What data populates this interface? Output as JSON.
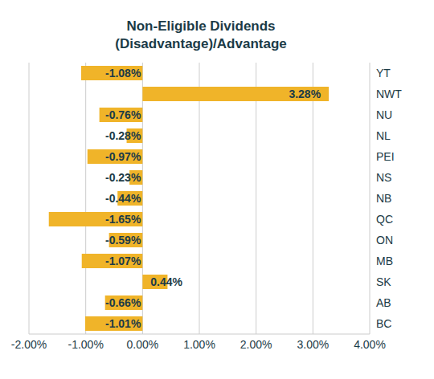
{
  "chart_data": {
    "type": "bar",
    "orientation": "horizontal",
    "title": "Non-Eligible Dividends",
    "subtitle": "(Disadvantage)/Advantage",
    "categories": [
      "YT",
      "NWT",
      "NU",
      "NL",
      "PEI",
      "NS",
      "NB",
      "QC",
      "ON",
      "MB",
      "SK",
      "AB",
      "BC"
    ],
    "values": [
      -1.08,
      3.28,
      -0.76,
      -0.28,
      -0.97,
      -0.23,
      -0.44,
      -1.65,
      -0.59,
      -1.07,
      0.44,
      -0.66,
      -1.01
    ],
    "value_labels": [
      "-1.08%",
      "3.28%",
      "-0.76%",
      "-0.28%",
      "-0.97%",
      "-0.23%",
      "-0.44%",
      "-1.65%",
      "-0.59%",
      "-1.07%",
      "0.44%",
      "-0.66%",
      "-1.01%"
    ],
    "data_labels": true,
    "color": "#f0b429",
    "xlim": [
      -2,
      4
    ],
    "xticks": [
      {
        "value": -2,
        "label": "-2.00%"
      },
      {
        "value": -1,
        "label": "-1.00%"
      },
      {
        "value": 0,
        "label": "0.00%"
      },
      {
        "value": 1,
        "label": "1.00%"
      },
      {
        "value": 2,
        "label": "2.00%"
      },
      {
        "value": 3,
        "label": "3.00%"
      },
      {
        "value": 4,
        "label": "4.00%"
      }
    ],
    "grid": true
  }
}
